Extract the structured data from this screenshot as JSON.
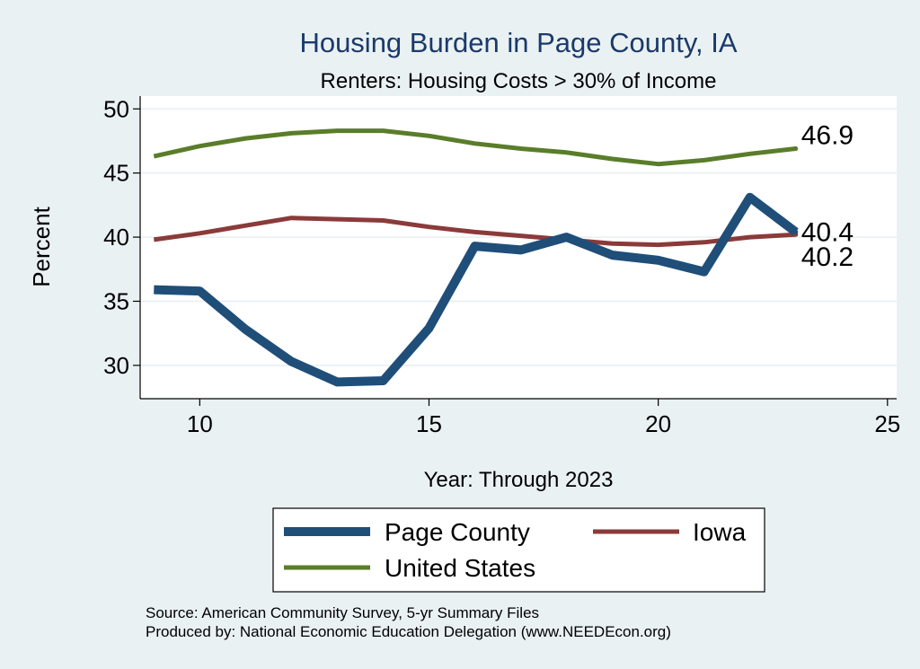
{
  "chart_data": {
    "type": "line",
    "title": "Housing Burden in Page County, IA",
    "subtitle": "Renters: Housing Costs > 30% of Income",
    "xlabel": "Year: Through 2023",
    "ylabel": "Percent",
    "xlim": [
      8.7,
      25.2
    ],
    "ylim": [
      27.4,
      51.0
    ],
    "x_ticks": [
      10,
      15,
      20,
      25
    ],
    "y_ticks": [
      30,
      35,
      40,
      45,
      50
    ],
    "grid": true,
    "legend_position": "bottom",
    "x": [
      9,
      10,
      11,
      12,
      13,
      14,
      15,
      16,
      17,
      18,
      19,
      20,
      21,
      22,
      23
    ],
    "series": [
      {
        "name": "Page County",
        "color": "#1f4e79",
        "values": [
          35.9,
          35.8,
          32.8,
          30.3,
          28.7,
          28.8,
          32.9,
          39.3,
          39.0,
          40.0,
          38.6,
          38.2,
          37.3,
          43.1,
          40.4
        ],
        "end_label": "40.4"
      },
      {
        "name": "Iowa",
        "color": "#8b3a3a",
        "values": [
          39.8,
          40.3,
          40.9,
          41.5,
          41.4,
          41.3,
          40.8,
          40.4,
          40.1,
          39.8,
          39.5,
          39.4,
          39.6,
          40.0,
          40.2
        ],
        "end_label": "40.2"
      },
      {
        "name": "United States",
        "color": "#5a7d2a",
        "values": [
          46.3,
          47.1,
          47.7,
          48.1,
          48.3,
          48.3,
          47.9,
          47.3,
          46.9,
          46.6,
          46.1,
          45.7,
          46.0,
          46.5,
          46.9
        ],
        "end_label": "46.9"
      }
    ]
  },
  "footer": {
    "source": "Source: American Community Survey, 5-yr Summary Files",
    "produced": "Produced by: National Economic Education Delegation (www.NEEDEcon.org)"
  }
}
